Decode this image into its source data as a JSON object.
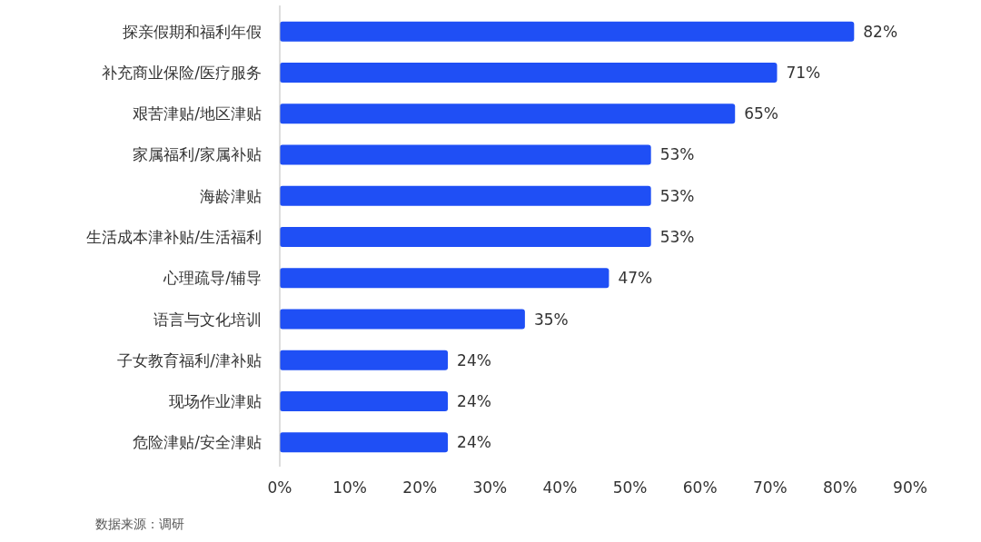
{
  "chart_data": {
    "type": "bar",
    "orientation": "horizontal",
    "categories": [
      "探亲假期和福利年假",
      "补充商业保险/医疗服务",
      "艰苦津贴/地区津贴",
      "家属福利/家属补贴",
      "海龄津贴",
      "生活成本津补贴/生活福利",
      "心理疏导/辅导",
      "语言与文化培训",
      "子女教育福利/津补贴",
      "现场作业津贴",
      "危险津贴/安全津贴"
    ],
    "values": [
      82,
      71,
      65,
      53,
      53,
      53,
      47,
      35,
      24,
      24,
      24
    ],
    "value_labels": [
      "82%",
      "71%",
      "65%",
      "53%",
      "53%",
      "53%",
      "47%",
      "35%",
      "24%",
      "24%",
      "24%"
    ],
    "color": "#1f4ff5",
    "xlim": [
      0,
      90
    ],
    "xticks": [
      {
        "value": 0,
        "label": "0%"
      },
      {
        "value": 10,
        "label": "10%"
      },
      {
        "value": 20,
        "label": "20%"
      },
      {
        "value": 30,
        "label": "30%"
      },
      {
        "value": 40,
        "label": "40%"
      },
      {
        "value": 50,
        "label": "50%"
      },
      {
        "value": 60,
        "label": "60%"
      },
      {
        "value": 70,
        "label": "70%"
      },
      {
        "value": 80,
        "label": "80%"
      },
      {
        "value": 90,
        "label": "90%"
      }
    ],
    "annotations": [
      "数据来源：调研"
    ]
  }
}
